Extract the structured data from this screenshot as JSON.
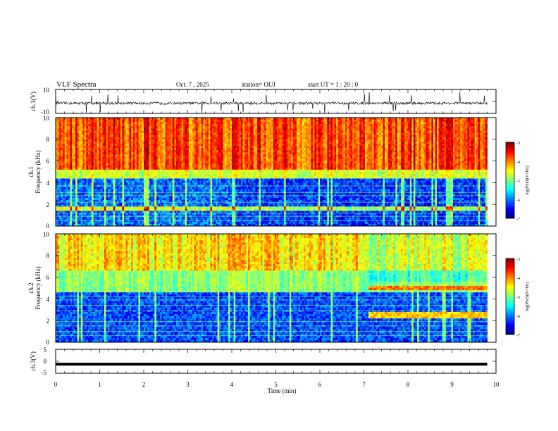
{
  "header": {
    "title": "VLF Spectra",
    "date": "Oct. 7 , 2025",
    "station": "station= OUJ",
    "start": "start UT = 1 : 20 : 0"
  },
  "colors": {
    "colormap": [
      "#00007f",
      "#0000ff",
      "#007fff",
      "#00ffff",
      "#7fff7f",
      "#ffff00",
      "#ff7f00",
      "#ff0000",
      "#7f0000"
    ]
  },
  "chart_data": [
    {
      "type": "line",
      "name": "ch1-waveform",
      "ylabel": "ch.1(V)",
      "ylim": [
        -10,
        10
      ],
      "y_ticks": [
        "10",
        "-10"
      ],
      "xlim": [
        0,
        10
      ],
      "baseline": -1.5
    },
    {
      "type": "heatmap",
      "name": "ch1-spectrogram",
      "ylabel_line1": "ch.1",
      "ylabel_line2": "Frequency (kHz)",
      "ylim": [
        0,
        10
      ],
      "y_ticks": [
        "0",
        "2",
        "4",
        "6",
        "8",
        "10"
      ],
      "xlim": [
        0,
        10
      ],
      "data_end_min": 9.8,
      "colorbar": {
        "label": "log(PSD)(V²/Hz)",
        "range": [
          -7,
          -3
        ],
        "ticks": [
          "-3",
          "-4",
          "-5",
          "-6",
          "-7"
        ]
      }
    },
    {
      "type": "heatmap",
      "name": "ch2-spectrogram",
      "ylabel_line1": "ch.2",
      "ylabel_line2": "Frequency (kHz)",
      "ylim": [
        0,
        10
      ],
      "y_ticks": [
        "0",
        "2",
        "4",
        "6",
        "8",
        "10"
      ],
      "xlim": [
        0,
        10
      ],
      "data_end_min": 9.8,
      "colorbar": {
        "label": "log(PSD)(V²/Hz)",
        "range": [
          -7,
          -3
        ],
        "ticks": [
          "-3",
          "-4",
          "-5",
          "-6",
          "-7"
        ]
      }
    },
    {
      "type": "line",
      "name": "ch3-waveform",
      "ylabel": "ch.3(V)",
      "ylim": [
        -5,
        5
      ],
      "y_ticks": [
        "5",
        "0",
        "-5"
      ],
      "xlim": [
        0,
        10
      ],
      "xlabel": "Time (min)",
      "x_ticks": [
        "0",
        "1",
        "2",
        "3",
        "4",
        "5",
        "6",
        "7",
        "8",
        "9",
        "10"
      ],
      "baseline": -1.2
    }
  ]
}
